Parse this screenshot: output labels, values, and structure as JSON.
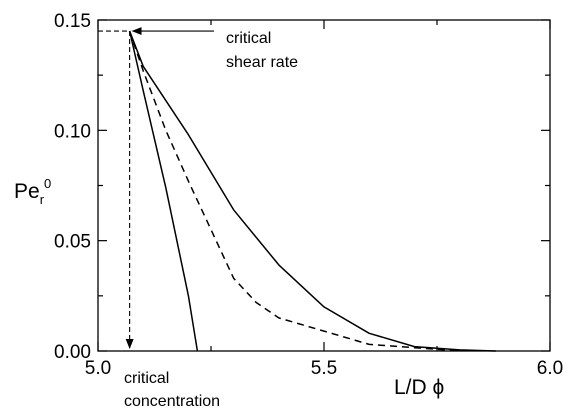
{
  "chart_data": {
    "type": "line",
    "xlim": [
      5.0,
      6.0
    ],
    "ylim": [
      0.0,
      0.15
    ],
    "xticks": [
      "5.0",
      "5.5",
      "6.0"
    ],
    "yticks": [
      "0.00",
      "0.05",
      "0.10",
      "0.15"
    ],
    "xlabel": "L/D  ϕ",
    "ylabel": {
      "base": "Pe",
      "sub": "r",
      "sup": "0"
    },
    "grid": false,
    "series": [
      {
        "style": "solid",
        "x": [
          5.07,
          5.1,
          5.15,
          5.2,
          5.22
        ],
        "y": [
          0.145,
          0.118,
          0.074,
          0.025,
          0.0
        ]
      },
      {
        "style": "dashed",
        "x": [
          5.07,
          5.1,
          5.15,
          5.2,
          5.25,
          5.3,
          5.35,
          5.4,
          5.5,
          5.6,
          5.7,
          5.8
        ],
        "y": [
          0.145,
          0.127,
          0.1,
          0.077,
          0.055,
          0.033,
          0.022,
          0.015,
          0.009,
          0.003,
          0.0015,
          0.0
        ]
      },
      {
        "style": "solid",
        "x": [
          5.07,
          5.1,
          5.2,
          5.3,
          5.4,
          5.5,
          5.6,
          5.7,
          5.8,
          5.88
        ],
        "y": [
          0.145,
          0.129,
          0.098,
          0.064,
          0.039,
          0.02,
          0.008,
          0.002,
          0.0005,
          0.0
        ]
      }
    ],
    "annotations": {
      "shear_rate": {
        "line1": "critical",
        "line2": "shear rate"
      },
      "concentration": {
        "line1": "critical",
        "line2": "concentration"
      }
    },
    "critical_point": {
      "x": 5.07,
      "y": 0.145
    }
  }
}
